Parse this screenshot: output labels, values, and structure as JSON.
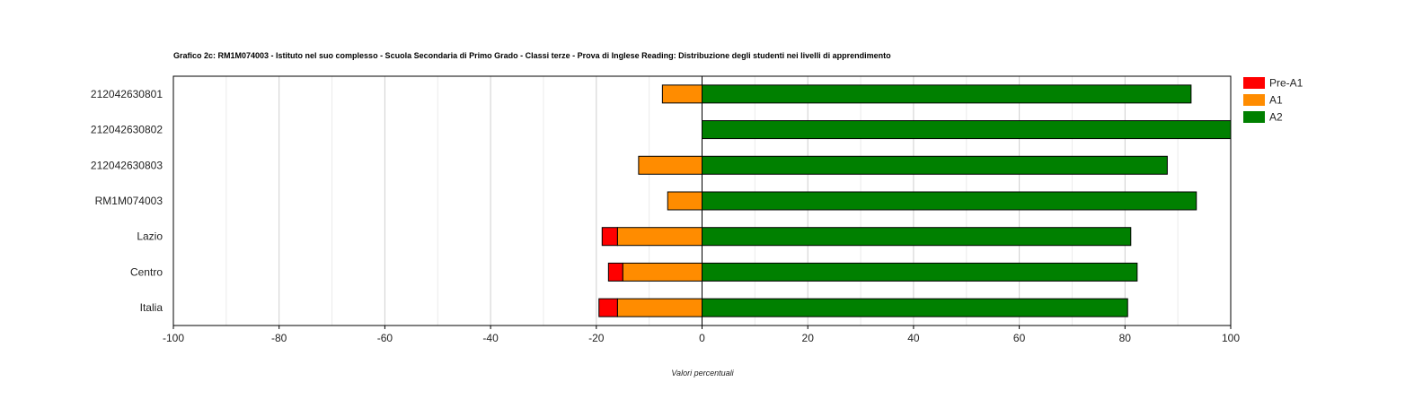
{
  "chart_data": {
    "type": "bar",
    "orientation": "horizontal",
    "stacked": "diverging",
    "title": "Grafico 2c: RM1M074003 - Istituto nel suo complesso - Scuola Secondaria di Primo Grado - Classi terze - Prova di Inglese Reading: Distribuzione degli studenti nei livelli di apprendimento",
    "xlabel": "Valori percentuali",
    "ylabel": "",
    "xlim": [
      -100,
      100
    ],
    "xticks": [
      -100,
      -80,
      -60,
      -40,
      -20,
      0,
      20,
      40,
      60,
      80,
      100
    ],
    "grid": true,
    "legend_position": "right",
    "categories": [
      "212042630801",
      "212042630802",
      "212042630803",
      "RM1M074003",
      "Lazio",
      "Centro",
      "Italia"
    ],
    "series": [
      {
        "name": "Pre-A1",
        "color": "#ff0000",
        "values": [
          0,
          0,
          0,
          0,
          2.9,
          2.7,
          3.5
        ]
      },
      {
        "name": "A1",
        "color": "#ff8c00",
        "values": [
          7.5,
          0,
          12,
          6.5,
          16,
          15,
          16
        ]
      },
      {
        "name": "A2",
        "color": "#008000",
        "values": [
          92.5,
          100,
          88,
          93.5,
          81.1,
          82.3,
          80.5
        ]
      }
    ]
  }
}
